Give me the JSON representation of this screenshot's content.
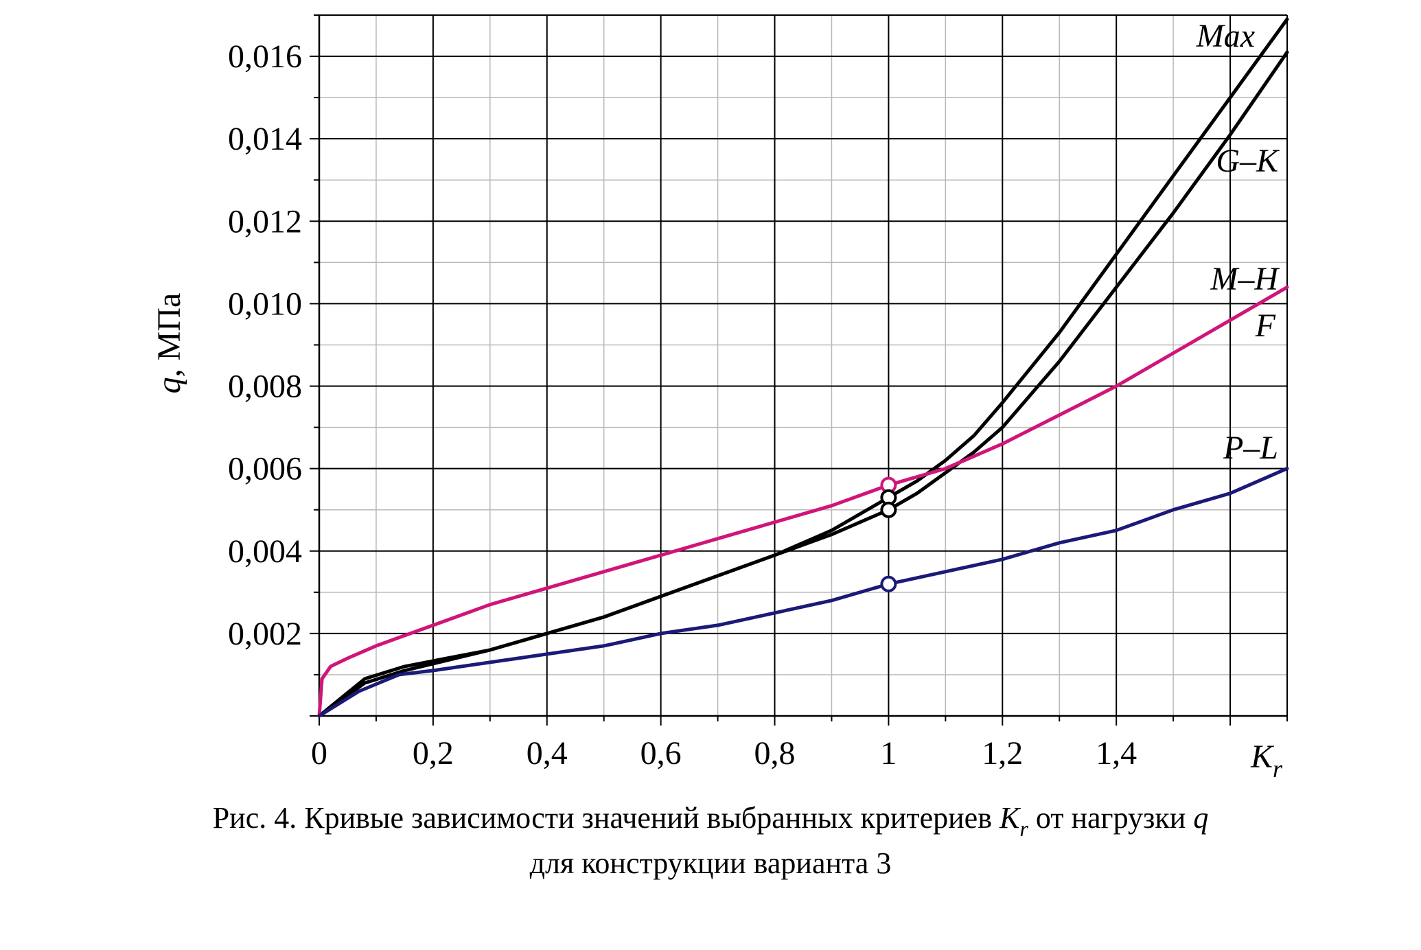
{
  "chart_data": {
    "type": "line",
    "xlabel": "K",
    "xlabel_sub": "r",
    "ylabel_q": "q",
    "ylabel_unit": ", МПа",
    "xlim": [
      0,
      1.7
    ],
    "ylim": [
      0,
      0.017
    ],
    "x_ticks": [
      0,
      0.2,
      0.4,
      0.6,
      0.8,
      1,
      1.2,
      1.4
    ],
    "x_tick_labels": [
      "0",
      "0,2",
      "0,4",
      "0,6",
      "0,8",
      "1",
      "1,2",
      "1,4"
    ],
    "y_ticks": [
      0.002,
      0.004,
      0.006,
      0.008,
      0.01,
      0.012,
      0.014,
      0.016
    ],
    "y_tick_labels": [
      "0,002",
      "0,004",
      "0,006",
      "0,008",
      "0,010",
      "0,012",
      "0,014",
      "0,016"
    ],
    "grid": true,
    "series": [
      {
        "name": "Max",
        "color": "#000000",
        "x": [
          0,
          0.08,
          0.15,
          0.3,
          0.4,
          0.5,
          0.6,
          0.7,
          0.8,
          0.9,
          1.0,
          1.05,
          1.1,
          1.15,
          1.2,
          1.3,
          1.4,
          1.5,
          1.6,
          1.7
        ],
        "y": [
          0,
          0.0009,
          0.0012,
          0.0016,
          0.002,
          0.0024,
          0.0029,
          0.0034,
          0.0039,
          0.0045,
          0.0053,
          0.0057,
          0.0062,
          0.0068,
          0.0076,
          0.0093,
          0.0112,
          0.0131,
          0.015,
          0.0169
        ]
      },
      {
        "name": "G–K",
        "color": "#000000",
        "x": [
          0,
          0.08,
          0.15,
          0.3,
          0.4,
          0.5,
          0.6,
          0.7,
          0.8,
          0.9,
          1.0,
          1.05,
          1.1,
          1.15,
          1.2,
          1.3,
          1.4,
          1.5,
          1.6,
          1.7
        ],
        "y": [
          0,
          0.0008,
          0.0011,
          0.0016,
          0.002,
          0.0024,
          0.0029,
          0.0034,
          0.0039,
          0.0044,
          0.005,
          0.0054,
          0.0059,
          0.0064,
          0.007,
          0.0086,
          0.0104,
          0.0122,
          0.0141,
          0.0161
        ]
      },
      {
        "name": "M–H",
        "color": "#d0157a",
        "x": [
          0,
          0.005,
          0.02,
          0.05,
          0.1,
          0.2,
          0.3,
          0.4,
          0.5,
          0.6,
          0.7,
          0.8,
          0.9,
          1.0,
          1.1,
          1.2,
          1.3,
          1.4,
          1.5,
          1.6,
          1.7
        ],
        "y": [
          0,
          0.0009,
          0.0012,
          0.0014,
          0.0017,
          0.0022,
          0.0027,
          0.0031,
          0.0035,
          0.0039,
          0.0043,
          0.0047,
          0.0051,
          0.0056,
          0.006,
          0.0066,
          0.0073,
          0.008,
          0.0088,
          0.0096,
          0.0104
        ]
      },
      {
        "name": "P–L",
        "color": "#1a1a78",
        "x": [
          0,
          0.07,
          0.14,
          0.2,
          0.3,
          0.4,
          0.5,
          0.6,
          0.7,
          0.8,
          0.9,
          1.0,
          1.1,
          1.2,
          1.3,
          1.4,
          1.5,
          1.6,
          1.7
        ],
        "y": [
          0,
          0.0006,
          0.001,
          0.0011,
          0.0013,
          0.0015,
          0.0017,
          0.002,
          0.0022,
          0.0025,
          0.0028,
          0.0032,
          0.0035,
          0.0038,
          0.0042,
          0.0045,
          0.005,
          0.0054,
          0.006
        ]
      }
    ],
    "markers": [
      {
        "x": 1.0,
        "y": 0.0056,
        "color": "#d0157a"
      },
      {
        "x": 1.0,
        "y": 0.0053,
        "color": "#000000"
      },
      {
        "x": 1.0,
        "y": 0.005,
        "color": "#000000"
      },
      {
        "x": 1.0,
        "y": 0.0032,
        "color": "#1a1a78"
      }
    ],
    "annotations": [
      "Max",
      "G–K",
      "M–H",
      "F",
      "P–L"
    ]
  },
  "caption": {
    "line1_pre": "Рис. 4. Кривые зависимости значений выбранных критериев ",
    "line1_k": "K",
    "line1_r": "r",
    "line1_mid": " от нагрузки ",
    "line1_q": "q",
    "line2": "для конструкции варианта 3"
  }
}
